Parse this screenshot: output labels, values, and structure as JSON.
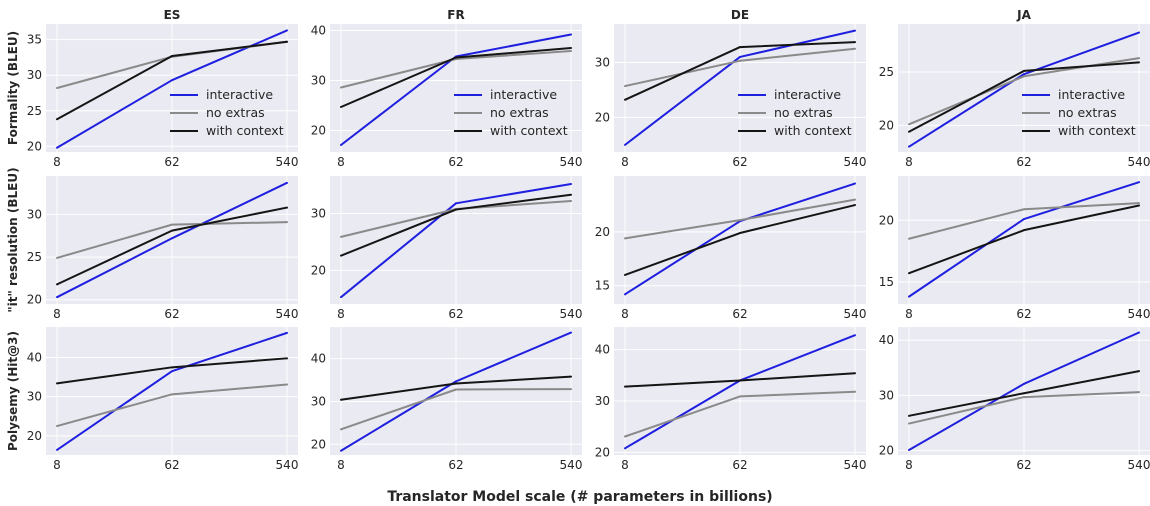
{
  "chart_data": {
    "type": "line",
    "xlabel": "Translator Model scale (# parameters in billions)",
    "x": [
      "8",
      "62",
      "540"
    ],
    "columns": [
      "ES",
      "FR",
      "DE",
      "JA"
    ],
    "rows": [
      "Formality (BLEU)",
      "\"it\" resolution (BLEU)",
      "Polysemy (Hit@3)"
    ],
    "series_names": [
      "interactive",
      "no extras",
      "with context"
    ],
    "colors": {
      "interactive": "#1f1fe0",
      "no extras": "#8a8a8a",
      "with context": "#151515",
      "background": "#eaeaf2",
      "grid": "#ffffff"
    },
    "grid": true,
    "legend_location": "lower right (first row only)",
    "panels": [
      {
        "row": 0,
        "col": 0,
        "title": "ES",
        "ylim": [
          19.2,
          37.2
        ],
        "yticks": [
          20,
          25,
          30,
          35
        ],
        "series": [
          {
            "name": "interactive",
            "values": [
              19.8,
              29.3,
              36.3
            ]
          },
          {
            "name": "no extras",
            "values": [
              28.2,
              32.6,
              34.7
            ]
          },
          {
            "name": "with context",
            "values": [
              23.8,
              32.7,
              34.7
            ]
          }
        ]
      },
      {
        "row": 0,
        "col": 1,
        "title": "FR",
        "ylim": [
          15.7,
          41.3
        ],
        "yticks": [
          20,
          30,
          40
        ],
        "series": [
          {
            "name": "interactive",
            "values": [
              17.1,
              34.8,
              39.2
            ]
          },
          {
            "name": "no extras",
            "values": [
              28.6,
              34.3,
              35.9
            ]
          },
          {
            "name": "with context",
            "values": [
              24.7,
              34.6,
              36.5
            ]
          }
        ]
      },
      {
        "row": 0,
        "col": 2,
        "title": "DE",
        "ylim": [
          13.7,
          37.0
        ],
        "yticks": [
          20,
          30
        ],
        "series": [
          {
            "name": "interactive",
            "values": [
              15.0,
              31.0,
              35.8
            ]
          },
          {
            "name": "no extras",
            "values": [
              25.7,
              30.3,
              32.5
            ]
          },
          {
            "name": "with context",
            "values": [
              23.2,
              32.8,
              33.7
            ]
          }
        ]
      },
      {
        "row": 0,
        "col": 3,
        "title": "JA",
        "ylim": [
          17.5,
          29.5
        ],
        "yticks": [
          20,
          25
        ],
        "series": [
          {
            "name": "interactive",
            "values": [
              18.0,
              24.8,
              28.7
            ]
          },
          {
            "name": "no extras",
            "values": [
              20.1,
              24.6,
              26.3
            ]
          },
          {
            "name": "with context",
            "values": [
              19.4,
              25.1,
              25.9
            ]
          }
        ]
      },
      {
        "row": 1,
        "col": 0,
        "title": "",
        "ylim": [
          19.5,
          34.5
        ],
        "yticks": [
          20,
          25,
          30
        ],
        "series": [
          {
            "name": "interactive",
            "values": [
              20.3,
              27.2,
              33.7
            ]
          },
          {
            "name": "no extras",
            "values": [
              24.9,
              28.8,
              29.1
            ]
          },
          {
            "name": "with context",
            "values": [
              21.8,
              28.1,
              30.8
            ]
          }
        ]
      },
      {
        "row": 1,
        "col": 1,
        "title": "",
        "ylim": [
          14.1,
          36.6
        ],
        "yticks": [
          20,
          30
        ],
        "series": [
          {
            "name": "interactive",
            "values": [
              15.3,
              31.8,
              35.2
            ]
          },
          {
            "name": "no extras",
            "values": [
              25.9,
              30.8,
              32.2
            ]
          },
          {
            "name": "with context",
            "values": [
              22.6,
              30.7,
              33.3
            ]
          }
        ]
      },
      {
        "row": 1,
        "col": 2,
        "title": "",
        "ylim": [
          13.3,
          25.2
        ],
        "yticks": [
          15,
          20
        ],
        "series": [
          {
            "name": "interactive",
            "values": [
              14.2,
              21.0,
              24.5
            ]
          },
          {
            "name": "no extras",
            "values": [
              19.4,
              21.1,
              23.0
            ]
          },
          {
            "name": "with context",
            "values": [
              16.0,
              19.9,
              22.5
            ]
          }
        ]
      },
      {
        "row": 1,
        "col": 3,
        "title": "",
        "ylim": [
          13.2,
          23.6
        ],
        "yticks": [
          15,
          20
        ],
        "series": [
          {
            "name": "interactive",
            "values": [
              13.8,
              20.1,
              23.1
            ]
          },
          {
            "name": "no extras",
            "values": [
              18.5,
              20.9,
              21.4
            ]
          },
          {
            "name": "with context",
            "values": [
              15.7,
              19.2,
              21.2
            ]
          }
        ]
      },
      {
        "row": 2,
        "col": 0,
        "title": "",
        "ylim": [
          15.1,
          47.8
        ],
        "yticks": [
          20,
          30,
          40
        ],
        "series": [
          {
            "name": "interactive",
            "values": [
              16.4,
              36.5,
              46.3
            ]
          },
          {
            "name": "no extras",
            "values": [
              22.5,
              30.6,
              33.1
            ]
          },
          {
            "name": "with context",
            "values": [
              33.4,
              37.5,
              39.8
            ]
          }
        ]
      },
      {
        "row": 2,
        "col": 1,
        "title": "",
        "ylim": [
          17.5,
          47.4
        ],
        "yticks": [
          20,
          30,
          40
        ],
        "series": [
          {
            "name": "interactive",
            "values": [
              18.5,
              34.7,
              46.1
            ]
          },
          {
            "name": "no extras",
            "values": [
              23.5,
              32.8,
              32.9
            ]
          },
          {
            "name": "with context",
            "values": [
              30.4,
              34.2,
              35.8
            ]
          }
        ]
      },
      {
        "row": 2,
        "col": 2,
        "title": "",
        "ylim": [
          19.5,
          44.4
        ],
        "yticks": [
          20,
          30,
          40
        ],
        "series": [
          {
            "name": "interactive",
            "values": [
              20.8,
              34.0,
              42.8
            ]
          },
          {
            "name": "no extras",
            "values": [
              23.1,
              30.9,
              31.8
            ]
          },
          {
            "name": "with context",
            "values": [
              32.8,
              34.0,
              35.4
            ]
          }
        ]
      },
      {
        "row": 2,
        "col": 3,
        "title": "",
        "ylim": [
          19.2,
          42.4
        ],
        "yticks": [
          20,
          30,
          40
        ],
        "series": [
          {
            "name": "interactive",
            "values": [
              20.1,
              32.1,
              41.4
            ]
          },
          {
            "name": "no extras",
            "values": [
              24.9,
              29.7,
              30.6
            ]
          },
          {
            "name": "with context",
            "values": [
              26.3,
              30.4,
              34.4
            ]
          }
        ]
      }
    ]
  }
}
